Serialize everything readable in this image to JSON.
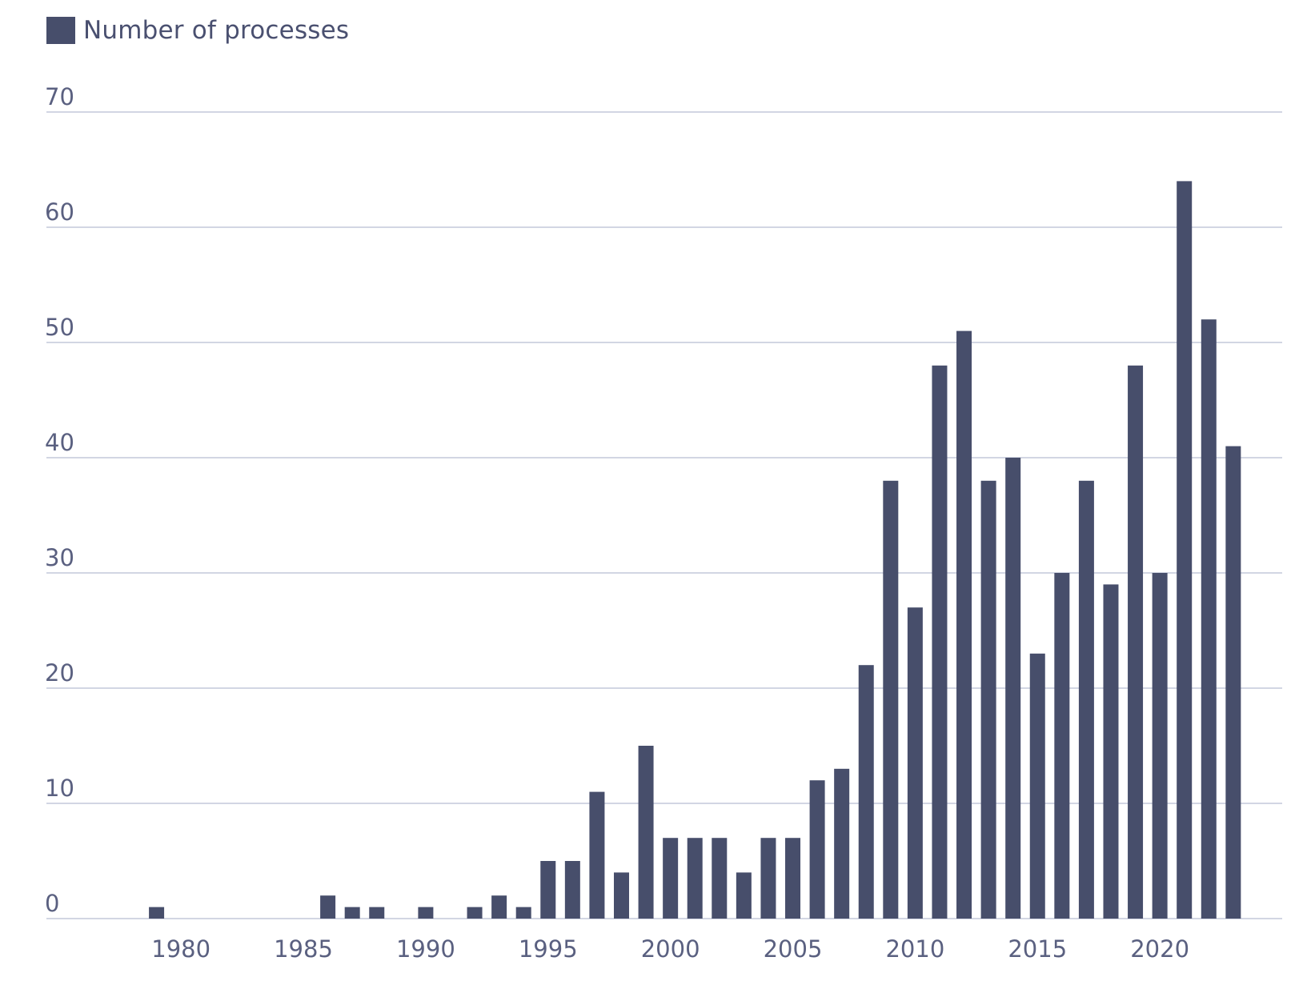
{
  "chart_data": {
    "type": "bar",
    "legend": {
      "label": "Number of processes",
      "color": "#474e6b",
      "position": "top-left"
    },
    "x_ticks": [
      "1980",
      "1985",
      "1990",
      "1995",
      "2000",
      "2005",
      "2010",
      "2015",
      "2020"
    ],
    "y_ticks": [
      "0",
      "10",
      "20",
      "30",
      "40",
      "50",
      "60",
      "70"
    ],
    "ylim": [
      0,
      70
    ],
    "xlim": [
      1974.5,
      2025
    ],
    "grid": true,
    "series": [
      {
        "name": "Number of processes",
        "color": "#474e6b",
        "data": [
          {
            "x": 1979,
            "y": 1
          },
          {
            "x": 1986,
            "y": 2
          },
          {
            "x": 1987,
            "y": 1
          },
          {
            "x": 1988,
            "y": 1
          },
          {
            "x": 1990,
            "y": 1
          },
          {
            "x": 1992,
            "y": 1
          },
          {
            "x": 1993,
            "y": 2
          },
          {
            "x": 1994,
            "y": 1
          },
          {
            "x": 1995,
            "y": 5
          },
          {
            "x": 1996,
            "y": 5
          },
          {
            "x": 1997,
            "y": 11
          },
          {
            "x": 1998,
            "y": 4
          },
          {
            "x": 1999,
            "y": 15
          },
          {
            "x": 2000,
            "y": 7
          },
          {
            "x": 2001,
            "y": 7
          },
          {
            "x": 2002,
            "y": 7
          },
          {
            "x": 2003,
            "y": 4
          },
          {
            "x": 2004,
            "y": 7
          },
          {
            "x": 2005,
            "y": 7
          },
          {
            "x": 2006,
            "y": 12
          },
          {
            "x": 2007,
            "y": 13
          },
          {
            "x": 2008,
            "y": 22
          },
          {
            "x": 2009,
            "y": 38
          },
          {
            "x": 2010,
            "y": 27
          },
          {
            "x": 2011,
            "y": 48
          },
          {
            "x": 2012,
            "y": 51
          },
          {
            "x": 2013,
            "y": 38
          },
          {
            "x": 2014,
            "y": 40
          },
          {
            "x": 2015,
            "y": 23
          },
          {
            "x": 2016,
            "y": 30
          },
          {
            "x": 2017,
            "y": 38
          },
          {
            "x": 2018,
            "y": 29
          },
          {
            "x": 2019,
            "y": 48
          },
          {
            "x": 2020,
            "y": 30
          },
          {
            "x": 2021,
            "y": 64
          },
          {
            "x": 2022,
            "y": 52
          },
          {
            "x": 2023,
            "y": 41
          }
        ]
      }
    ]
  }
}
